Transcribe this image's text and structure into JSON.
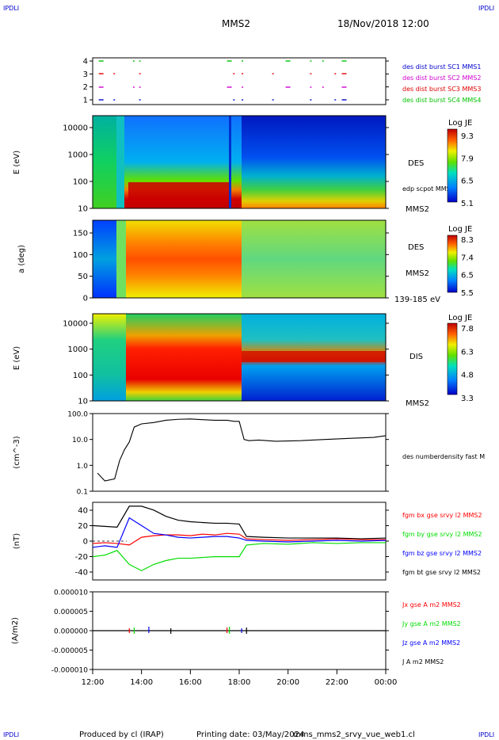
{
  "header": {
    "corner_left_top": "IPDLI",
    "corner_right_top": "IPDLI",
    "corner_left_bottom": "IPDLI",
    "corner_right_bottom": "IPDLI",
    "mission": "MMS2",
    "datetime": "18/Nov/2018 12:00"
  },
  "footer": {
    "produced": "Produced by cl (IRAP)",
    "printing": "Printing date: 03/May/2024",
    "file": "mms_mms2_srvy_vue_web1.cl"
  },
  "colors": {
    "red": "#e00000",
    "green": "#00c000",
    "blue": "#0000cc",
    "magenta": "#d000d0",
    "black": "#000000",
    "bx": "#ff0000",
    "by": "#00dd00",
    "bz": "#0000ff",
    "bt": "#000000"
  },
  "chart_data": [
    {
      "type": "scatter",
      "panel": "burst-availability",
      "yticks": [
        "4",
        "3",
        "2",
        "1"
      ],
      "legend": [
        {
          "label": "des dist burst SC1 MMS1",
          "color": "#0000cc"
        },
        {
          "label": "des dist burst SC2 MMS2",
          "color": "#d000d0"
        },
        {
          "label": "des dist burst SC3 MMS3",
          "color": "#e00000"
        },
        {
          "label": "des dist burst SC4 MMS4",
          "color": "#00c000"
        }
      ],
      "bursts_hours": [
        12.25,
        12.85,
        13.65,
        13.9,
        17.5,
        17.75,
        18.1,
        19.35,
        19.9,
        20.9,
        21.4,
        21.9,
        22.2
      ]
    },
    {
      "type": "heatmap",
      "panel": "des-energy-spectrogram",
      "ylabel": "E (eV)",
      "yscale": "log",
      "yticks": [
        "10000",
        "1000",
        "100",
        "10"
      ],
      "label": "DES",
      "overlay_label": "edp scpot MMS2",
      "sc_label": "MMS2",
      "colorbar": {
        "title": "Log JE",
        "ticks": [
          "9.3",
          "7.9",
          "6.5",
          "5.1"
        ],
        "range": [
          5.1,
          9.3
        ]
      }
    },
    {
      "type": "heatmap",
      "panel": "des-pitch-angle",
      "ylabel": "a (deg)",
      "yticks": [
        "150",
        "100",
        "50",
        "0"
      ],
      "ylim": [
        0,
        180
      ],
      "label": "DES",
      "sc_label": "MMS2",
      "energy_range": "139-185 eV",
      "colorbar": {
        "title": "Log JE",
        "ticks": [
          "8.3",
          "7.4",
          "6.5",
          "5.5"
        ],
        "range": [
          5.5,
          8.3
        ]
      }
    },
    {
      "type": "heatmap",
      "panel": "dis-energy-spectrogram",
      "ylabel": "E (eV)",
      "yscale": "log",
      "yticks": [
        "10000",
        "1000",
        "100",
        "10"
      ],
      "label": "DIS",
      "sc_label": "MMS2",
      "colorbar": {
        "title": "Log JE",
        "ticks": [
          "7.8",
          "6.3",
          "4.8",
          "3.3"
        ],
        "range": [
          3.3,
          7.8
        ]
      }
    },
    {
      "type": "line",
      "panel": "density",
      "ylabel": "(cm^-3)",
      "yscale": "log",
      "yticks": [
        "100.0",
        "10.0",
        "1.0",
        "0.1"
      ],
      "ylim": [
        0.1,
        100
      ],
      "series": [
        {
          "name": "des numberdensity fast M",
          "color": "#000000",
          "x": [
            12.2,
            12.5,
            12.9,
            13.1,
            13.3,
            13.5,
            13.7,
            14.0,
            14.5,
            15.0,
            15.5,
            16.0,
            16.5,
            17.0,
            17.5,
            17.8,
            18.0,
            18.2,
            18.4,
            18.8,
            19.5,
            20.5,
            21.5,
            22.5,
            23.5,
            24.0
          ],
          "y": [
            0.5,
            0.25,
            0.3,
            1.5,
            4,
            8,
            30,
            40,
            45,
            55,
            60,
            62,
            58,
            55,
            55,
            50,
            50,
            10,
            9,
            9.5,
            8.5,
            9,
            10,
            11,
            12,
            14
          ]
        }
      ]
    },
    {
      "type": "line",
      "panel": "magnetic-field",
      "ylabel": "(nT)",
      "yticks": [
        "40",
        "20",
        "0",
        "-20",
        "-40"
      ],
      "ylim": [
        -50,
        50
      ],
      "series": [
        {
          "name": "fgm bx gse srvy l2 MMS2",
          "color": "#ff0000",
          "x": [
            12.0,
            12.5,
            13.0,
            13.5,
            14.0,
            14.5,
            15.0,
            15.5,
            16.0,
            16.5,
            17.0,
            17.5,
            18.0,
            18.3,
            19.0,
            20.0,
            21.0,
            22.0,
            23.0,
            24.0
          ],
          "y": [
            -3,
            -2,
            -3,
            -5,
            5,
            7,
            8,
            8,
            7,
            9,
            8,
            10,
            9,
            3,
            2,
            1,
            2,
            3,
            2,
            2
          ]
        },
        {
          "name": "fgm by gse srvy l2 MMS2",
          "color": "#00dd00",
          "x": [
            12.0,
            12.5,
            13.0,
            13.5,
            14.0,
            14.5,
            15.0,
            15.5,
            16.0,
            16.5,
            17.0,
            17.5,
            18.0,
            18.3,
            19.0,
            20.0,
            21.0,
            22.0,
            23.0,
            24.0
          ],
          "y": [
            -20,
            -18,
            -12,
            -30,
            -38,
            -30,
            -25,
            -22,
            -22,
            -21,
            -20,
            -20,
            -20,
            -5,
            -3,
            -4,
            -2,
            -3,
            -2,
            -2
          ]
        },
        {
          "name": "fgm bz gse srvy l2 MMS2",
          "color": "#0000ff",
          "x": [
            12.0,
            12.5,
            13.0,
            13.5,
            14.0,
            14.5,
            15.0,
            15.5,
            16.0,
            16.5,
            17.0,
            17.5,
            18.0,
            18.3,
            19.0,
            20.0,
            21.0,
            22.0,
            23.0,
            24.0
          ],
          "y": [
            -8,
            -6,
            -8,
            30,
            20,
            10,
            8,
            5,
            4,
            5,
            6,
            6,
            4,
            1,
            0,
            -1,
            0,
            1,
            0,
            1
          ]
        },
        {
          "name": "fgm bt gse srvy l2 MMS2",
          "color": "#000000",
          "x": [
            12.0,
            12.5,
            13.0,
            13.5,
            14.0,
            14.5,
            15.0,
            15.5,
            16.0,
            16.5,
            17.0,
            17.5,
            18.0,
            18.3,
            19.0,
            20.0,
            21.0,
            22.0,
            23.0,
            24.0
          ],
          "y": [
            20,
            19,
            18,
            45,
            45,
            40,
            32,
            27,
            25,
            24,
            23,
            23,
            22,
            6,
            5,
            4,
            4,
            4,
            3,
            4
          ]
        }
      ]
    },
    {
      "type": "line",
      "panel": "current-density",
      "ylabel": "(A/m2)",
      "yticks": [
        "0.000010",
        "0.000005",
        "0.000000",
        "-0.000005",
        "-0.000010"
      ],
      "ylim": [
        -1e-05,
        1e-05
      ],
      "series": [
        {
          "name": "Jx gse A m2 MMS2",
          "color": "#ff0000"
        },
        {
          "name": "Jy gse A m2 MMS2",
          "color": "#00dd00"
        },
        {
          "name": "Jz gse A m2 MMS2",
          "color": "#0000ff"
        },
        {
          "name": "J A m2 MMS2",
          "color": "#000000"
        }
      ],
      "spikes_hours": [
        13.5,
        13.7,
        14.3,
        15.2,
        17.5,
        17.6,
        18.1,
        18.3
      ]
    }
  ],
  "time_axis": {
    "ticks": [
      "12:00",
      "14:00",
      "16:00",
      "18:00",
      "20:00",
      "22:00",
      "00:00"
    ],
    "range_hours": [
      12,
      24
    ]
  }
}
